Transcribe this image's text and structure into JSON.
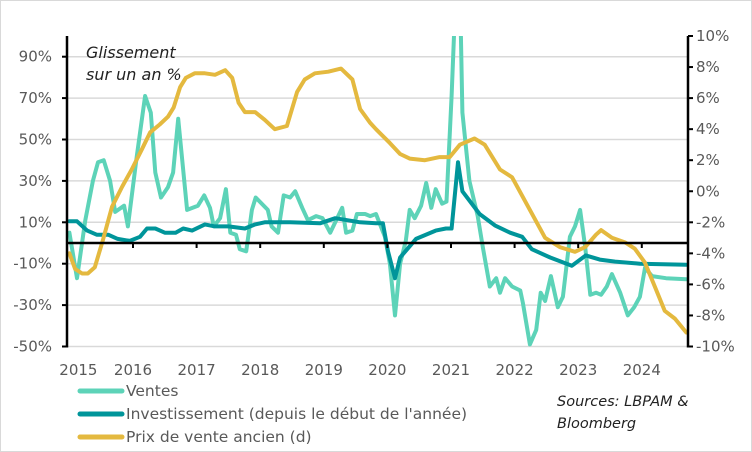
{
  "chart_data": {
    "type": "line",
    "annotation": [
      "Glissement",
      "sur un an %"
    ],
    "source": [
      "Sources: LBPAM &",
      "Bloomberg"
    ],
    "x_ticks": [
      "2015",
      "2016",
      "2017",
      "2018",
      "2019",
      "2020",
      "2021",
      "2022",
      "2023",
      "2024"
    ],
    "xlim": [
      2015.0,
      2024.7
    ],
    "y_left": {
      "lim": [
        -50,
        100
      ],
      "ticks": [
        90,
        70,
        50,
        30,
        10,
        -10,
        -30,
        -50
      ],
      "tick_labels": [
        "90%",
        "70%",
        "50%",
        "30%",
        "10%",
        "-10%",
        "-30%",
        "-50%"
      ]
    },
    "y_right": {
      "lim": [
        -10,
        10
      ],
      "ticks": [
        10,
        8,
        6,
        4,
        2,
        0,
        -2,
        -4,
        -6,
        -8,
        -10
      ],
      "tick_labels": [
        "10%",
        "8%",
        "6%",
        "4%",
        "2%",
        "0%",
        "-2%",
        "-4%",
        "-6%",
        "-8%",
        "-10%"
      ]
    },
    "grid": true,
    "legend_position": "bottom-left",
    "series": [
      {
        "name": "Ventes",
        "axis": "left",
        "color": "#5dd3b8",
        "x": [
          2015.0,
          2015.12,
          2015.25,
          2015.37,
          2015.45,
          2015.54,
          2015.64,
          2015.72,
          2015.86,
          2015.92,
          2016.06,
          2016.19,
          2016.28,
          2016.35,
          2016.44,
          2016.55,
          2016.63,
          2016.71,
          2016.85,
          2017.02,
          2017.12,
          2017.21,
          2017.27,
          2017.37,
          2017.46,
          2017.53,
          2017.62,
          2017.68,
          2017.78,
          2017.87,
          2017.93,
          2018.12,
          2018.18,
          2018.28,
          2018.37,
          2018.47,
          2018.55,
          2018.66,
          2018.75,
          2018.88,
          2018.98,
          2019.1,
          2019.29,
          2019.35,
          2019.45,
          2019.52,
          2019.65,
          2019.73,
          2019.82,
          2019.96,
          2020.04,
          2020.12,
          2020.2,
          2020.29,
          2020.35,
          2020.43,
          2020.53,
          2020.61,
          2020.69,
          2020.76,
          2020.86,
          2020.93,
          2021.01,
          2021.06,
          2021.15,
          2021.18,
          2021.29,
          2021.42,
          2021.5,
          2021.61,
          2021.71,
          2021.77,
          2021.85,
          2021.96,
          2022.09,
          2022.13,
          2022.24,
          2022.34,
          2022.41,
          2022.48,
          2022.57,
          2022.68,
          2022.76,
          2022.87,
          2022.95,
          2023.03,
          2023.11,
          2023.19,
          2023.28,
          2023.36,
          2023.45,
          2023.53,
          2023.66,
          2023.78,
          2023.88,
          2023.97,
          2024.05,
          2024.16,
          2024.38,
          2024.7
        ],
        "y": [
          5,
          -17,
          11,
          30,
          39,
          40,
          30,
          15,
          18,
          8,
          42,
          71,
          63,
          34,
          22,
          27,
          34,
          60,
          16,
          18,
          23,
          17,
          8,
          12,
          26,
          5,
          4,
          -3,
          -4,
          16,
          22,
          16,
          8,
          5,
          23,
          22,
          25,
          17,
          11,
          13,
          12,
          5,
          17,
          5,
          6,
          14,
          14,
          13,
          14,
          3,
          -10,
          -35,
          -10,
          1,
          16,
          12,
          18,
          29,
          17,
          26,
          19,
          20,
          71,
          110,
          110,
          63,
          30,
          13,
          -2,
          -21,
          -17,
          -24,
          -17,
          -21,
          -23,
          -29,
          -49,
          -42,
          -24,
          -28,
          -16,
          -31,
          -26,
          3,
          8,
          16,
          -2,
          -25,
          -24,
          -25,
          -21,
          -15,
          -24,
          -35,
          -31,
          -26,
          -12,
          -16,
          -17,
          -17.5
        ]
      },
      {
        "name": "Investissement (depuis le début de l'année)",
        "axis": "left",
        "color": "#00959a",
        "x": [
          2015.0,
          2015.12,
          2015.28,
          2015.43,
          2015.61,
          2015.76,
          2015.95,
          2016.11,
          2016.22,
          2016.35,
          2016.5,
          2016.67,
          2016.79,
          2016.93,
          2017.13,
          2017.29,
          2017.5,
          2017.76,
          2017.92,
          2018.07,
          2018.47,
          2018.94,
          2019.18,
          2019.57,
          2019.82,
          2019.93,
          2020.01,
          2020.12,
          2020.2,
          2020.45,
          2020.76,
          2020.92,
          2021.01,
          2021.11,
          2021.18,
          2021.45,
          2021.69,
          2021.93,
          2022.12,
          2022.27,
          2022.56,
          2022.9,
          2023.12,
          2023.34,
          2023.58,
          2023.97,
          2024.7
        ],
        "y": [
          10.5,
          10.5,
          6,
          4,
          4,
          2,
          1,
          3,
          7,
          7,
          5,
          5,
          7,
          6,
          9,
          8,
          8,
          7,
          9,
          10,
          10,
          9.5,
          12,
          10,
          9.5,
          9.5,
          -4,
          -17,
          -7,
          2,
          6,
          7,
          7,
          39,
          25,
          14,
          8.5,
          5,
          3,
          -3,
          -7,
          -11,
          -6,
          -8,
          -9,
          -10,
          -10.5
        ]
      },
      {
        "name": "Prix de vente ancien (d)",
        "axis": "right",
        "color": "#e4b93f",
        "x": [
          2015.0,
          2015.09,
          2015.2,
          2015.29,
          2015.4,
          2015.53,
          2015.67,
          2015.83,
          2015.98,
          2016.14,
          2016.27,
          2016.42,
          2016.55,
          2016.64,
          2016.74,
          2016.83,
          2016.97,
          2017.13,
          2017.29,
          2017.45,
          2017.56,
          2017.66,
          2017.76,
          2017.92,
          2018.07,
          2018.23,
          2018.42,
          2018.58,
          2018.7,
          2018.86,
          2019.07,
          2019.27,
          2019.45,
          2019.57,
          2019.73,
          2019.82,
          2020.04,
          2020.2,
          2020.35,
          2020.59,
          2020.82,
          2020.98,
          2021.14,
          2021.37,
          2021.53,
          2021.77,
          2021.96,
          2022.24,
          2022.48,
          2022.71,
          2022.95,
          2023.11,
          2023.28,
          2023.36,
          2023.53,
          2023.74,
          2023.89,
          2024.05,
          2024.21,
          2024.36,
          2024.52,
          2024.7
        ],
        "y": [
          -4.0,
          -5.0,
          -5.3,
          -5.3,
          -4.9,
          -3.1,
          -1.0,
          0.3,
          1.4,
          2.7,
          3.8,
          4.3,
          4.8,
          5.4,
          6.7,
          7.3,
          7.6,
          7.6,
          7.5,
          7.8,
          7.3,
          5.7,
          5.1,
          5.1,
          4.6,
          4.0,
          4.2,
          6.4,
          7.2,
          7.6,
          7.7,
          7.9,
          7.2,
          5.3,
          4.4,
          4.0,
          3.1,
          2.4,
          2.1,
          2.0,
          2.2,
          2.2,
          3.0,
          3.4,
          3.0,
          1.4,
          0.9,
          -1.2,
          -3.0,
          -3.6,
          -3.9,
          -3.6,
          -2.8,
          -2.5,
          -3.0,
          -3.3,
          -3.7,
          -4.6,
          -6.2,
          -7.7,
          -8.2,
          -9.1
        ]
      }
    ]
  }
}
